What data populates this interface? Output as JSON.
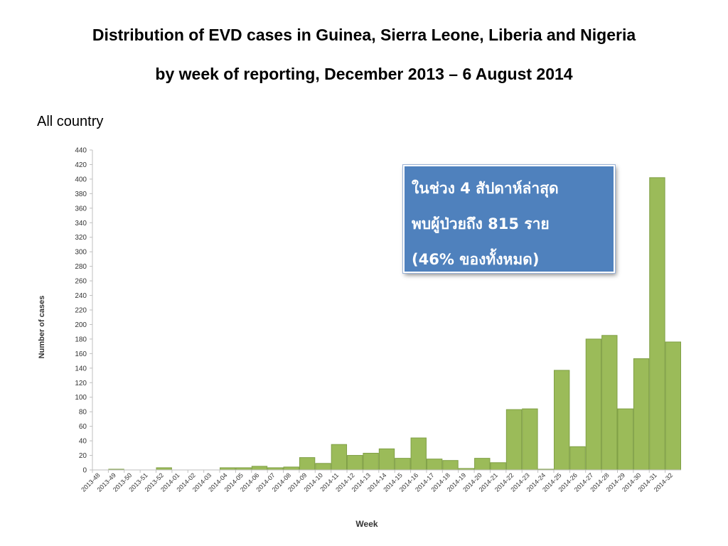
{
  "slide": {
    "title_line1": "Distribution of EVD cases in Guinea, Sierra Leone, Liberia  and Nigeria",
    "title_line2": "by week of reporting, December 2013 – 6 August 2014",
    "subtitle": "All country"
  },
  "annotation": {
    "line1": "ในช่วง 4 สัปดาห์ล่าสุด",
    "line2": "พบผู้ป่วยถึง 815 ราย",
    "line3": "(46% ของทั้งหมด)",
    "background_color": "#4f81bd"
  },
  "chart_data": {
    "type": "bar",
    "title": "",
    "xlabel": "Week",
    "ylabel": "Number of cases",
    "ylim": [
      0,
      440
    ],
    "y_ticks": [
      0,
      20,
      40,
      60,
      80,
      100,
      120,
      140,
      160,
      180,
      200,
      220,
      240,
      260,
      280,
      300,
      320,
      340,
      360,
      380,
      400,
      420,
      440
    ],
    "grid": false,
    "bar_color": "#9bbb59",
    "bar_edge_color": "#7f9f45",
    "categories": [
      "2013-48",
      "2013-49",
      "2013-50",
      "2013-51",
      "2013-52",
      "2014-01",
      "2014-02",
      "2014-03",
      "2014-04",
      "2014-05",
      "2014-06",
      "2014-07",
      "2014-08",
      "2014-09",
      "2014-10",
      "2014-11",
      "2014-12",
      "2014-13",
      "2014-14",
      "2014-15",
      "2014-16",
      "2014-17",
      "2014-18",
      "2014-19",
      "2014-20",
      "2014-21",
      "2014-22",
      "2014-23",
      "2014-24",
      "2014-25",
      "2014-26",
      "2014-27",
      "2014-28",
      "2014-29",
      "2014-30",
      "2014-31",
      "2014-32"
    ],
    "values": [
      0,
      1,
      0,
      0,
      3,
      0,
      0,
      0,
      3,
      3,
      5,
      3,
      4,
      17,
      9,
      35,
      20,
      23,
      29,
      16,
      44,
      15,
      13,
      2,
      16,
      10,
      83,
      84,
      1,
      137,
      32,
      180,
      185,
      84,
      153,
      402,
      176
    ]
  }
}
